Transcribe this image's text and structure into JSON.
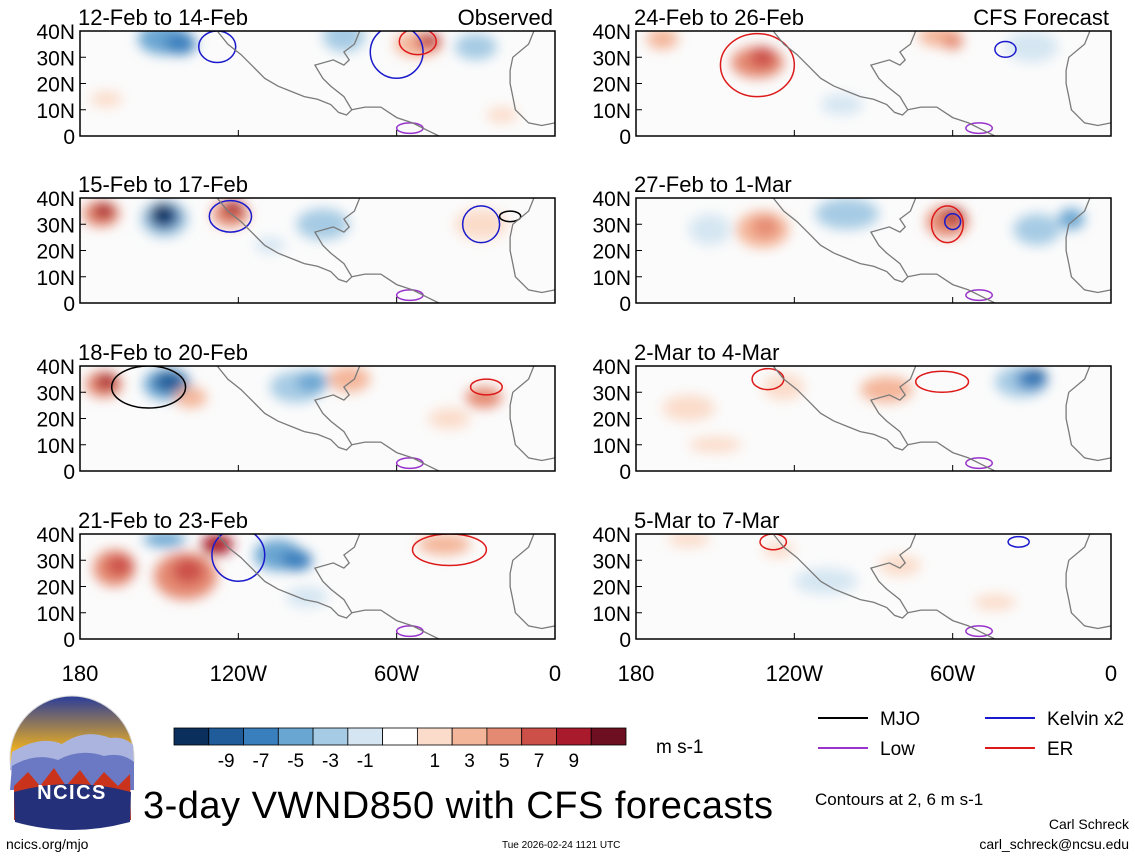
{
  "chart_data": {
    "type": "heatmap",
    "variable": "VWND850",
    "title": "3-day VWND850 with CFS forecasts",
    "units": "m s-1",
    "contours_note": "Contours at 2, 6 m s-1",
    "x_ticks": [
      "180",
      "120W",
      "60W",
      "0"
    ],
    "y_ticks": [
      "0",
      "10N",
      "20N",
      "30N",
      "40N"
    ],
    "xlim": [
      180,
      360
    ],
    "ylim": [
      0,
      40
    ],
    "colorbar_levels": [
      -11,
      -9,
      -8,
      -7,
      -6,
      -5,
      -4,
      -3,
      -2,
      -1,
      0,
      1,
      2,
      3,
      4,
      5,
      6,
      7,
      8,
      9,
      11
    ],
    "colorbar_labels": [
      "-9",
      "-7",
      "-5",
      "-3",
      "-1",
      "1",
      "3",
      "5",
      "7",
      "9"
    ],
    "colorbar_colors": [
      "#0b2f5c",
      "#1f5c99",
      "#3a7fbd",
      "#6aa6d2",
      "#a6cbe4",
      "#d5e6f2",
      "#ffffff",
      "#fbdcca",
      "#f4b69a",
      "#e58a72",
      "#cc5048",
      "#a81a2c",
      "#6d0f20"
    ],
    "panels": [
      {
        "period": "12-Feb to 14-Feb",
        "source": "Observed"
      },
      {
        "period": "15-Feb to 17-Feb",
        "source": ""
      },
      {
        "period": "18-Feb to 20-Feb",
        "source": ""
      },
      {
        "period": "21-Feb to 23-Feb",
        "source": ""
      },
      {
        "period": "24-Feb to 26-Feb",
        "source": "CFS Forecast"
      },
      {
        "period": "27-Feb to 1-Mar",
        "source": ""
      },
      {
        "period": "2-Mar to 4-Mar",
        "source": ""
      },
      {
        "period": "5-Mar to 7-Mar",
        "source": ""
      }
    ],
    "legend": [
      {
        "label": "MJO",
        "color": "#000000"
      },
      {
        "label": "Kelvin x2",
        "color": "#1a1acc"
      },
      {
        "label": "Low",
        "color": "#9933cc"
      },
      {
        "label": "ER",
        "color": "#dd1a1a"
      }
    ]
  },
  "logo": {
    "text": "NCICS"
  },
  "footer": {
    "site": "ncics.org/mjo",
    "timestamp": "Tue 2026-02-24 1121 UTC",
    "author": "Carl Schreck",
    "email": "carl_schreck@ncsu.edu"
  }
}
